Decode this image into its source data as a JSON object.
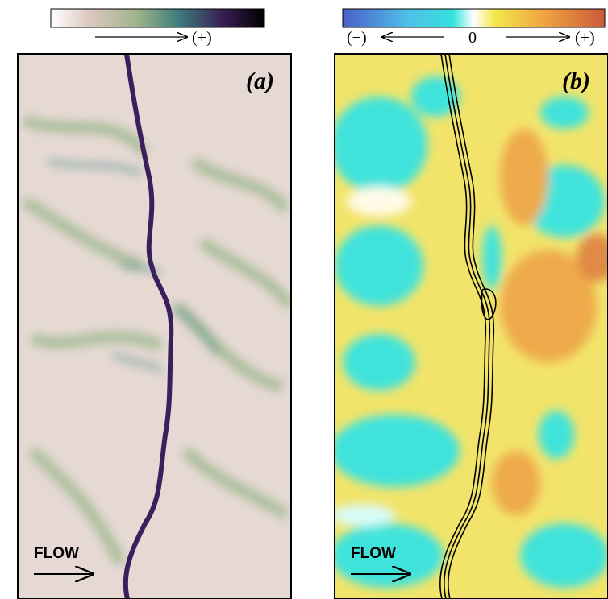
{
  "panels": [
    {
      "label": "(a)",
      "colorbar": {
        "labels": [
          "(+)"
        ]
      },
      "flow_label": "FLOW"
    },
    {
      "label": "(b)",
      "colorbar": {
        "labels": [
          "(−)",
          "0",
          "(+)"
        ]
      },
      "flow_label": "FLOW"
    }
  ]
}
